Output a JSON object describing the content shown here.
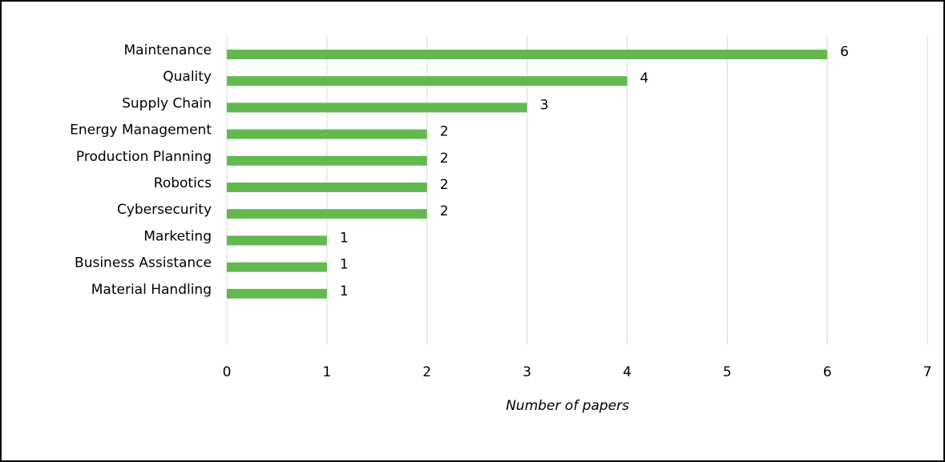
{
  "chart_data": {
    "type": "bar",
    "orientation": "horizontal",
    "categories": [
      "Maintenance",
      "Quality",
      "Supply Chain",
      "Energy Management",
      "Production Planning",
      "Robotics",
      "Cybersecurity",
      "Marketing",
      "Business Assistance",
      "Material Handling"
    ],
    "values": [
      6,
      4,
      3,
      2,
      2,
      2,
      2,
      1,
      1,
      1
    ],
    "color": "#63b94f",
    "x_label": "Number of papers",
    "xlim": [
      0,
      7
    ],
    "xticks": [
      0,
      1,
      2,
      3,
      4,
      5,
      6,
      7
    ],
    "grid": true
  }
}
